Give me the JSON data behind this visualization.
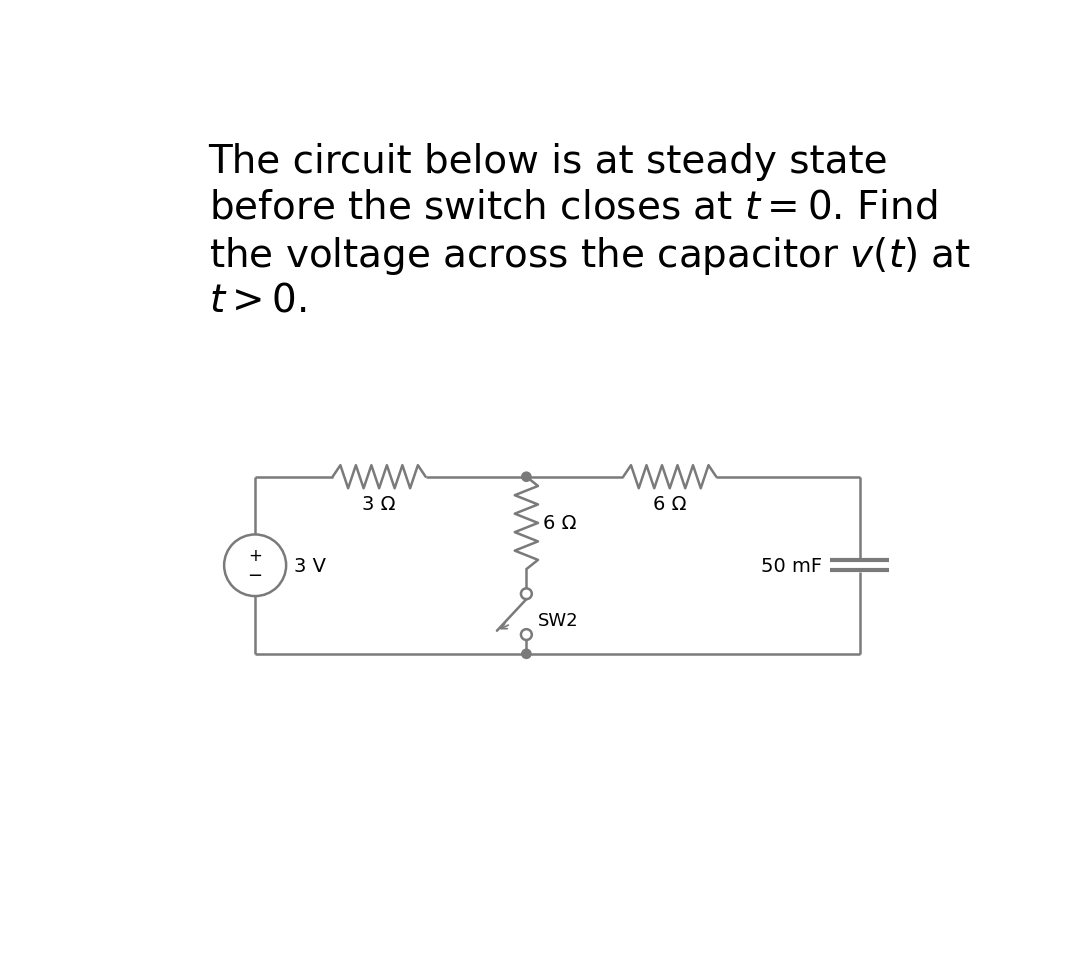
{
  "title_line1": "The circuit below is at steady state",
  "title_line2": "before the switch closes at $t = 0$. Find",
  "title_line3": "the voltage across the capacitor $v(t)$ at",
  "title_line4": "$t > 0$.",
  "bg_color": "#ffffff",
  "circuit_color": "#7a7a7a",
  "text_color": "#000000",
  "resistor_3_label": "3 Ω",
  "resistor_6_top_label": "6 Ω",
  "resistor_6_mid_label": "6 Ω",
  "source_label": "3 V",
  "capacitor_label": "50 mF",
  "switch_label": "SW2",
  "title_fontsize": 28,
  "label_fontsize": 14,
  "circuit_lw": 1.8
}
